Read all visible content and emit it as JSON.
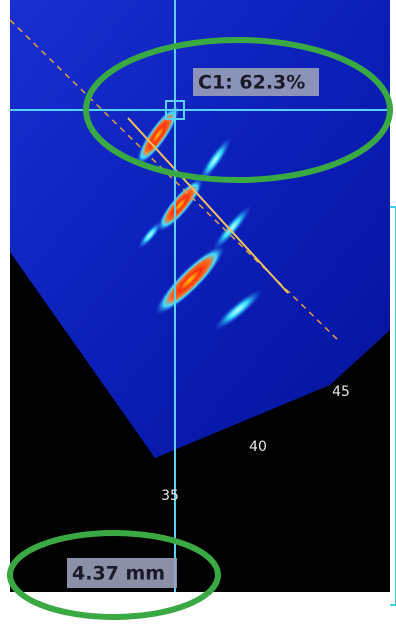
{
  "cursor": {
    "label": "C1: 62.3%"
  },
  "depth_scale": {
    "labels": [
      "45",
      "40",
      "35"
    ]
  },
  "measurement": {
    "label": "4.37 mm"
  }
}
